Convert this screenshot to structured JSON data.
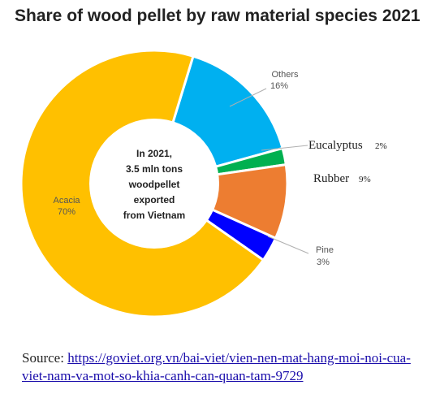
{
  "chart_data": {
    "type": "pie",
    "title": "Share of wood pellet by raw material species 2021",
    "center_text": [
      "In 2021,",
      "3.5 mln tons",
      "woodpellet",
      "exported",
      "from Vietnam"
    ],
    "slices": [
      {
        "name": "Acacia",
        "value": 70,
        "label": "70%",
        "color": "#FFC000"
      },
      {
        "name": "Others",
        "value": 16,
        "label": "16%",
        "color": "#00B0F0"
      },
      {
        "name": "Eucalyptus",
        "value": 2,
        "label": "2%",
        "color": "#00B050"
      },
      {
        "name": "Rubber",
        "value": 9,
        "label": "9%",
        "color": "#ED7D31"
      },
      {
        "name": "Pine",
        "value": 3,
        "label": "3%",
        "color": "#0000FF"
      }
    ]
  },
  "source": {
    "prefix": "Source:",
    "link": "https://goviet.org.vn/bai-viet/vien-nen-mat-hang-moi-noi-cua-viet-nam-va-mot-so-khia-canh-can-quan-tam-9729"
  }
}
